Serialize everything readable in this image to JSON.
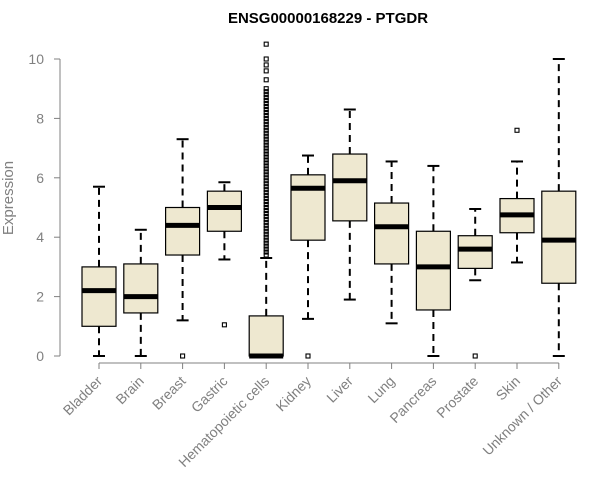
{
  "chart_data": {
    "type": "boxplot",
    "title": "ENSG00000168229 - PTGDR",
    "xlabel": "",
    "ylabel": "Expression",
    "ylim": [
      0,
      10.5
    ],
    "yticks": [
      0,
      2,
      4,
      6,
      8,
      10
    ],
    "colors": {
      "box_fill": "#EEE8D0",
      "stroke": "#000000",
      "axis": "#808080"
    },
    "categories": [
      "Bladder",
      "Brain",
      "Breast",
      "Gastric",
      "Hematopoietic cells",
      "Kidney",
      "Liver",
      "Lung",
      "Pancreas",
      "Prostate",
      "Skin",
      "Unknown / Other"
    ],
    "boxes": [
      {
        "min": 0.0,
        "q1": 1.0,
        "median": 2.2,
        "q3": 3.0,
        "max": 5.7,
        "outliers": []
      },
      {
        "min": 0.0,
        "q1": 1.45,
        "median": 2.0,
        "q3": 3.1,
        "max": 4.25,
        "outliers": []
      },
      {
        "min": 1.2,
        "q1": 3.4,
        "median": 4.4,
        "q3": 5.0,
        "max": 7.3,
        "outliers": [
          0.0
        ]
      },
      {
        "min": 3.25,
        "q1": 4.2,
        "median": 5.0,
        "q3": 5.55,
        "max": 5.85,
        "outliers": [
          1.05
        ]
      },
      {
        "min": 0.0,
        "q1": 0.0,
        "median": 0.0,
        "q3": 1.35,
        "max": 3.3,
        "outliers": [
          3.4,
          3.5,
          3.6,
          3.7,
          3.8,
          3.9,
          4.0,
          4.1,
          4.2,
          4.3,
          4.4,
          4.5,
          4.6,
          4.7,
          4.8,
          4.9,
          5.0,
          5.1,
          5.2,
          5.3,
          5.4,
          5.5,
          5.6,
          5.7,
          5.8,
          5.9,
          6.0,
          6.1,
          6.2,
          6.3,
          6.4,
          6.5,
          6.6,
          6.7,
          6.8,
          6.9,
          7.0,
          7.1,
          7.2,
          7.3,
          7.4,
          7.5,
          7.6,
          7.7,
          7.8,
          7.9,
          8.0,
          8.1,
          8.2,
          8.3,
          8.4,
          8.5,
          8.6,
          8.7,
          8.8,
          8.9,
          9.0,
          9.3,
          9.6,
          9.8,
          10.0,
          10.5
        ]
      },
      {
        "min": 1.25,
        "q1": 3.9,
        "median": 5.65,
        "q3": 6.1,
        "max": 6.75,
        "outliers": [
          0.0
        ]
      },
      {
        "min": 1.9,
        "q1": 4.55,
        "median": 5.9,
        "q3": 6.8,
        "max": 8.3,
        "outliers": []
      },
      {
        "min": 1.1,
        "q1": 3.1,
        "median": 4.35,
        "q3": 5.15,
        "max": 6.55,
        "outliers": []
      },
      {
        "min": 0.0,
        "q1": 1.55,
        "median": 3.0,
        "q3": 4.2,
        "max": 6.4,
        "outliers": []
      },
      {
        "min": 2.55,
        "q1": 2.95,
        "median": 3.6,
        "q3": 4.05,
        "max": 4.95,
        "outliers": [
          0.0
        ]
      },
      {
        "min": 3.15,
        "q1": 4.15,
        "median": 4.75,
        "q3": 5.3,
        "max": 6.55,
        "outliers": [
          7.6
        ]
      },
      {
        "min": 0.0,
        "q1": 2.45,
        "median": 3.9,
        "q3": 5.55,
        "max": 10.0,
        "outliers": []
      }
    ]
  }
}
